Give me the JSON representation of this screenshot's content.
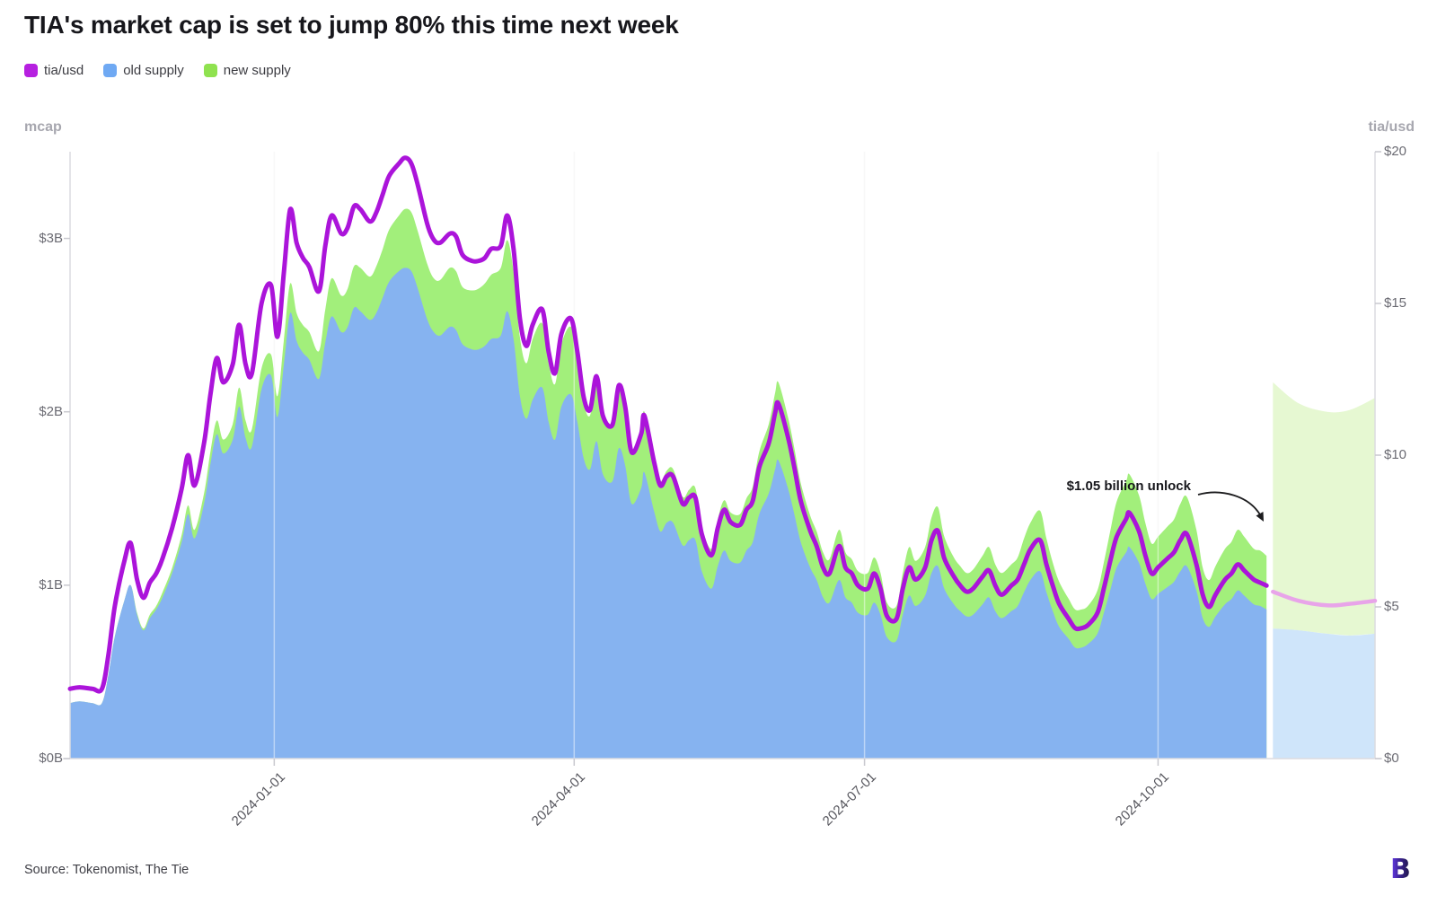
{
  "title": "TIA's market cap is set to jump 80% this time next week",
  "legend": {
    "items": [
      {
        "label": "tia/usd",
        "color": "#b620e0"
      },
      {
        "label": "old supply",
        "color": "#6fa9f3"
      },
      {
        "label": "new supply",
        "color": "#8fe24f"
      }
    ]
  },
  "axes": {
    "left": {
      "title": "mcap",
      "ticks": [
        "$3B",
        "$2B",
        "$1B",
        "$0B"
      ],
      "tick_values_b": [
        3,
        2,
        1,
        0
      ]
    },
    "right": {
      "title": "tia/usd",
      "ticks": [
        "$20",
        "$15",
        "$10",
        "$5",
        "$0"
      ],
      "tick_values": [
        20,
        15,
        10,
        5,
        0
      ]
    },
    "x": {
      "ticks": [
        "2024-01-01",
        "2024-04-01",
        "2024-07-01",
        "2024-10-01"
      ],
      "tick_days": [
        64,
        158,
        249,
        341
      ]
    }
  },
  "annotation": {
    "text": "$1.05 billion unlock"
  },
  "source": "Source: Tokenomist, The Tie",
  "chart_data": {
    "type": "area",
    "title": "TIA market cap (stacked old/new supply) with tia/usd price overlay and unlock forecast band",
    "start_date": "2023-10-30",
    "left_axis": {
      "label": "mcap",
      "unit": "$B",
      "min": 0,
      "max": 3.5
    },
    "right_axis": {
      "label": "tia/usd",
      "unit": "$",
      "min": 0,
      "max": 20
    },
    "x_axis": {
      "unit": "days_from_start",
      "gridlines_at_days": [
        64,
        158,
        249,
        341
      ]
    },
    "legend_position": "top-left",
    "annotation_value_b": 1.05,
    "colors": {
      "price_line": "#ab14da",
      "old_area": "#86b3f0",
      "new_area": "#a2ef7b",
      "forecast_price_line": "#e8a4e9",
      "forecast_old_band": "#cfe5fa",
      "forecast_new_band": "#e6f8d2",
      "axis_line": "#dcdce0",
      "arrow": "#1c1c1e"
    },
    "history": {
      "columns": [
        "day",
        "tia_usd",
        "old_supply_mcap_b",
        "new_supply_mcap_b"
      ],
      "rows": [
        [
          0,
          2.3,
          0.32,
          0
        ],
        [
          3,
          2.35,
          0.33,
          0
        ],
        [
          7,
          2.3,
          0.32,
          0
        ],
        [
          10,
          2.3,
          0.32,
          0
        ],
        [
          12,
          3.4,
          0.48,
          0
        ],
        [
          14,
          5.0,
          0.7,
          0
        ],
        [
          17,
          6.5,
          0.91,
          0
        ],
        [
          19,
          7.1,
          1.0,
          0
        ],
        [
          21,
          5.9,
          0.83,
          0.01
        ],
        [
          23,
          5.3,
          0.74,
          0.01
        ],
        [
          25,
          5.8,
          0.81,
          0.02
        ],
        [
          27,
          6.1,
          0.86,
          0.02
        ],
        [
          29,
          6.6,
          0.93,
          0.03
        ],
        [
          32,
          7.6,
          1.07,
          0.03
        ],
        [
          35,
          8.9,
          1.25,
          0.04
        ],
        [
          37,
          10.0,
          1.41,
          0.05
        ],
        [
          39,
          9.0,
          1.27,
          0.05
        ],
        [
          42,
          10.4,
          1.47,
          0.06
        ],
        [
          44,
          12.0,
          1.7,
          0.07
        ],
        [
          46,
          13.2,
          1.87,
          0.08
        ],
        [
          48,
          12.4,
          1.76,
          0.08
        ],
        [
          51,
          13.0,
          1.84,
          0.09
        ],
        [
          53,
          14.3,
          2.03,
          0.11
        ],
        [
          55,
          13.0,
          1.85,
          0.1
        ],
        [
          57,
          12.7,
          1.8,
          0.1
        ],
        [
          60,
          15.0,
          2.13,
          0.12
        ],
        [
          63,
          15.6,
          2.21,
          0.12
        ],
        [
          65,
          13.9,
          1.97,
          0.12
        ],
        [
          67,
          16.0,
          2.27,
          0.14
        ],
        [
          69,
          18.1,
          2.57,
          0.17
        ],
        [
          71,
          17.0,
          2.41,
          0.16
        ],
        [
          73,
          16.5,
          2.34,
          0.16
        ],
        [
          75,
          16.2,
          2.3,
          0.16
        ],
        [
          78,
          15.4,
          2.19,
          0.16
        ],
        [
          80,
          16.9,
          2.4,
          0.19
        ],
        [
          82,
          17.9,
          2.55,
          0.22
        ],
        [
          85,
          17.3,
          2.46,
          0.21
        ],
        [
          87,
          17.5,
          2.49,
          0.22
        ],
        [
          89,
          18.2,
          2.6,
          0.24
        ],
        [
          91,
          18.1,
          2.58,
          0.25
        ],
        [
          94,
          17.7,
          2.53,
          0.25
        ],
        [
          96,
          18.0,
          2.57,
          0.27
        ],
        [
          98,
          18.6,
          2.66,
          0.28
        ],
        [
          100,
          19.2,
          2.75,
          0.3
        ],
        [
          103,
          19.6,
          2.81,
          0.32
        ],
        [
          105,
          19.8,
          2.83,
          0.34
        ],
        [
          107,
          19.6,
          2.81,
          0.34
        ],
        [
          109,
          18.9,
          2.71,
          0.33
        ],
        [
          112,
          17.6,
          2.53,
          0.32
        ],
        [
          114,
          17.1,
          2.46,
          0.31
        ],
        [
          116,
          17.0,
          2.44,
          0.32
        ],
        [
          119,
          17.3,
          2.49,
          0.34
        ],
        [
          121,
          17.2,
          2.47,
          0.34
        ],
        [
          123,
          16.6,
          2.39,
          0.33
        ],
        [
          126,
          16.4,
          2.36,
          0.34
        ],
        [
          128,
          16.4,
          2.36,
          0.35
        ],
        [
          130,
          16.5,
          2.38,
          0.36
        ],
        [
          132,
          16.8,
          2.42,
          0.37
        ],
        [
          135,
          16.9,
          2.44,
          0.39
        ],
        [
          137,
          17.9,
          2.58,
          0.41
        ],
        [
          139,
          16.8,
          2.42,
          0.39
        ],
        [
          141,
          14.5,
          2.09,
          0.34
        ],
        [
          143,
          13.6,
          1.96,
          0.32
        ],
        [
          145,
          14.3,
          2.07,
          0.35
        ],
        [
          148,
          14.8,
          2.14,
          0.37
        ],
        [
          150,
          13.4,
          1.94,
          0.34
        ],
        [
          152,
          12.7,
          1.84,
          0.32
        ],
        [
          154,
          14.0,
          2.03,
          0.36
        ],
        [
          157,
          14.5,
          2.1,
          0.39
        ],
        [
          159,
          13.4,
          1.94,
          0.36
        ],
        [
          161,
          11.9,
          1.73,
          0.32
        ],
        [
          163,
          11.5,
          1.67,
          0.31
        ],
        [
          165,
          12.6,
          1.83,
          0.36
        ],
        [
          167,
          11.3,
          1.64,
          0.32
        ],
        [
          170,
          11.0,
          1.6,
          0.32
        ],
        [
          172,
          12.3,
          1.79,
          0.36
        ],
        [
          174,
          11.6,
          1.69,
          0.34
        ],
        [
          176,
          10.1,
          1.47,
          0.31
        ],
        [
          179,
          10.7,
          1.56,
          0.33
        ],
        [
          180,
          11.3,
          1.65,
          0.35
        ],
        [
          183,
          9.8,
          1.43,
          0.31
        ],
        [
          185,
          9.0,
          1.31,
          0.29
        ],
        [
          187,
          9.3,
          1.36,
          0.3
        ],
        [
          189,
          9.3,
          1.36,
          0.31
        ],
        [
          192,
          8.4,
          1.23,
          0.28
        ],
        [
          194,
          8.6,
          1.26,
          0.29
        ],
        [
          196,
          8.6,
          1.26,
          0.3
        ],
        [
          198,
          7.4,
          1.08,
          0.26
        ],
        [
          201,
          6.7,
          0.98,
          0.23
        ],
        [
          203,
          7.6,
          1.11,
          0.27
        ],
        [
          205,
          8.2,
          1.2,
          0.29
        ],
        [
          207,
          7.8,
          1.14,
          0.28
        ],
        [
          210,
          7.7,
          1.13,
          0.28
        ],
        [
          212,
          8.2,
          1.2,
          0.3
        ],
        [
          214,
          8.5,
          1.25,
          0.32
        ],
        [
          216,
          9.6,
          1.41,
          0.36
        ],
        [
          219,
          10.4,
          1.53,
          0.4
        ],
        [
          221,
          11.4,
          1.67,
          0.44
        ],
        [
          222,
          11.7,
          1.72,
          0.45
        ],
        [
          225,
          10.6,
          1.56,
          0.41
        ],
        [
          227,
          9.6,
          1.41,
          0.38
        ],
        [
          229,
          8.5,
          1.25,
          0.34
        ],
        [
          232,
          7.5,
          1.1,
          0.3
        ],
        [
          234,
          7.0,
          1.03,
          0.28
        ],
        [
          236,
          6.3,
          0.93,
          0.26
        ],
        [
          238,
          6.1,
          0.9,
          0.25
        ],
        [
          241,
          7.0,
          1.03,
          0.29
        ],
        [
          243,
          6.3,
          0.93,
          0.26
        ],
        [
          245,
          6.1,
          0.9,
          0.25
        ],
        [
          247,
          5.7,
          0.84,
          0.24
        ],
        [
          250,
          5.6,
          0.83,
          0.24
        ],
        [
          252,
          6.1,
          0.9,
          0.26
        ],
        [
          254,
          5.6,
          0.83,
          0.24
        ],
        [
          256,
          4.7,
          0.7,
          0.2
        ],
        [
          259,
          4.6,
          0.68,
          0.2
        ],
        [
          261,
          5.6,
          0.83,
          0.24
        ],
        [
          263,
          6.3,
          0.94,
          0.28
        ],
        [
          265,
          5.9,
          0.88,
          0.26
        ],
        [
          268,
          6.3,
          0.94,
          0.28
        ],
        [
          270,
          7.2,
          1.07,
          0.32
        ],
        [
          272,
          7.5,
          1.11,
          0.34
        ],
        [
          274,
          6.6,
          0.98,
          0.3
        ],
        [
          277,
          6.0,
          0.89,
          0.27
        ],
        [
          279,
          5.7,
          0.85,
          0.26
        ],
        [
          281,
          5.5,
          0.82,
          0.25
        ],
        [
          283,
          5.6,
          0.83,
          0.26
        ],
        [
          286,
          6.0,
          0.89,
          0.28
        ],
        [
          288,
          6.2,
          0.93,
          0.29
        ],
        [
          290,
          5.7,
          0.85,
          0.27
        ],
        [
          292,
          5.4,
          0.81,
          0.26
        ],
        [
          295,
          5.7,
          0.85,
          0.27
        ],
        [
          297,
          5.9,
          0.88,
          0.28
        ],
        [
          299,
          6.4,
          0.96,
          0.31
        ],
        [
          301,
          6.9,
          1.03,
          0.33
        ],
        [
          304,
          7.2,
          1.08,
          0.35
        ],
        [
          306,
          6.4,
          0.96,
          0.31
        ],
        [
          308,
          5.7,
          0.85,
          0.28
        ],
        [
          310,
          5.1,
          0.76,
          0.26
        ],
        [
          313,
          4.6,
          0.69,
          0.23
        ],
        [
          315,
          4.3,
          0.64,
          0.22
        ],
        [
          317,
          4.3,
          0.64,
          0.22
        ],
        [
          319,
          4.4,
          0.66,
          0.22
        ],
        [
          322,
          4.8,
          0.72,
          0.25
        ],
        [
          324,
          5.6,
          0.84,
          0.29
        ],
        [
          326,
          6.5,
          0.97,
          0.34
        ],
        [
          328,
          7.3,
          1.1,
          0.38
        ],
        [
          331,
          7.9,
          1.19,
          0.41
        ],
        [
          332,
          8.1,
          1.22,
          0.42
        ],
        [
          335,
          7.5,
          1.13,
          0.39
        ],
        [
          337,
          6.7,
          1.01,
          0.35
        ],
        [
          339,
          6.1,
          0.92,
          0.32
        ],
        [
          341,
          6.3,
          0.95,
          0.33
        ],
        [
          344,
          6.6,
          0.99,
          0.35
        ],
        [
          346,
          6.8,
          1.02,
          0.36
        ],
        [
          348,
          7.2,
          1.08,
          0.39
        ],
        [
          350,
          7.4,
          1.11,
          0.4
        ],
        [
          353,
          6.4,
          0.97,
          0.35
        ],
        [
          355,
          5.4,
          0.81,
          0.29
        ],
        [
          357,
          5.0,
          0.76,
          0.27
        ],
        [
          359,
          5.4,
          0.82,
          0.29
        ],
        [
          362,
          5.9,
          0.89,
          0.32
        ],
        [
          364,
          6.1,
          0.92,
          0.33
        ],
        [
          366,
          6.4,
          0.97,
          0.35
        ],
        [
          368,
          6.2,
          0.94,
          0.34
        ],
        [
          371,
          5.9,
          0.89,
          0.32
        ],
        [
          373,
          5.8,
          0.88,
          0.32
        ],
        [
          375,
          5.7,
          0.86,
          0.31
        ]
      ]
    },
    "forecast": {
      "columns": [
        "day",
        "tia_usd_projected",
        "old_band_top_mcap_b",
        "total_band_top_mcap_b"
      ],
      "rows": [
        [
          377,
          5.5,
          0.75,
          2.17
        ],
        [
          385,
          5.2,
          0.74,
          2.05
        ],
        [
          394,
          5.05,
          0.72,
          2.0
        ],
        [
          401,
          5.1,
          0.71,
          2.01
        ],
        [
          409,
          5.2,
          0.72,
          2.08
        ]
      ]
    }
  }
}
